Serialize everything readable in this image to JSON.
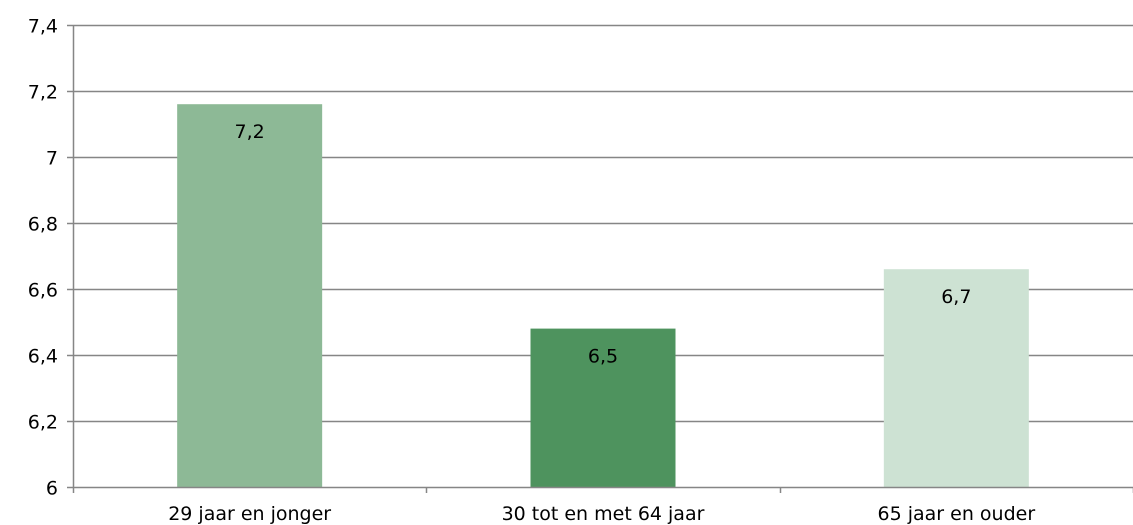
{
  "chart_data": {
    "type": "bar",
    "categories": [
      "29 jaar en jonger",
      "30 tot en met 64 jaar",
      "65 jaar en ouder"
    ],
    "values": [
      7.16,
      6.48,
      6.66
    ],
    "data_labels": [
      "7,2",
      "6,5",
      "6,7"
    ],
    "bar_colors": [
      "#8db996",
      "#4e935e",
      "#cde2d3"
    ],
    "ylim": [
      6,
      7.4
    ],
    "yticks": [
      6,
      6.2,
      6.4,
      6.6,
      6.8,
      7,
      7.2,
      7.4
    ],
    "ytick_labels": [
      "6",
      "6,2",
      "6,4",
      "6,6",
      "6,8",
      "7",
      "7,2",
      "7,4"
    ],
    "grid": true,
    "gridline_color": "#868686",
    "title": "",
    "xlabel": "",
    "ylabel": ""
  }
}
